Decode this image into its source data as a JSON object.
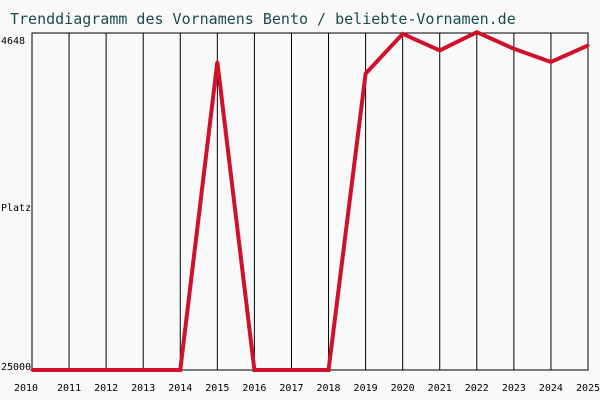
{
  "chart_data": {
    "type": "line",
    "title": "Trenddiagramm des Vornamens Bento / beliebte-Vornamen.de",
    "ylabel": "Platz",
    "y_top_label": "4648",
    "y_bottom_label": "25000",
    "ylim": [
      4648,
      25000
    ],
    "y_inverted": true,
    "grid": "vertical",
    "line_color": "#d0112b",
    "x": [
      "2010",
      "2011",
      "2012",
      "2013",
      "2014",
      "2015",
      "2016",
      "2017",
      "2018",
      "2019",
      "2020",
      "2021",
      "2022",
      "2023",
      "2024",
      "2025"
    ],
    "series": [
      {
        "values": [
          25000,
          25000,
          25000,
          25000,
          25000,
          6400,
          25000,
          25000,
          25000,
          7100,
          4700,
          5700,
          4600,
          5600,
          6400,
          5400
        ]
      }
    ]
  }
}
